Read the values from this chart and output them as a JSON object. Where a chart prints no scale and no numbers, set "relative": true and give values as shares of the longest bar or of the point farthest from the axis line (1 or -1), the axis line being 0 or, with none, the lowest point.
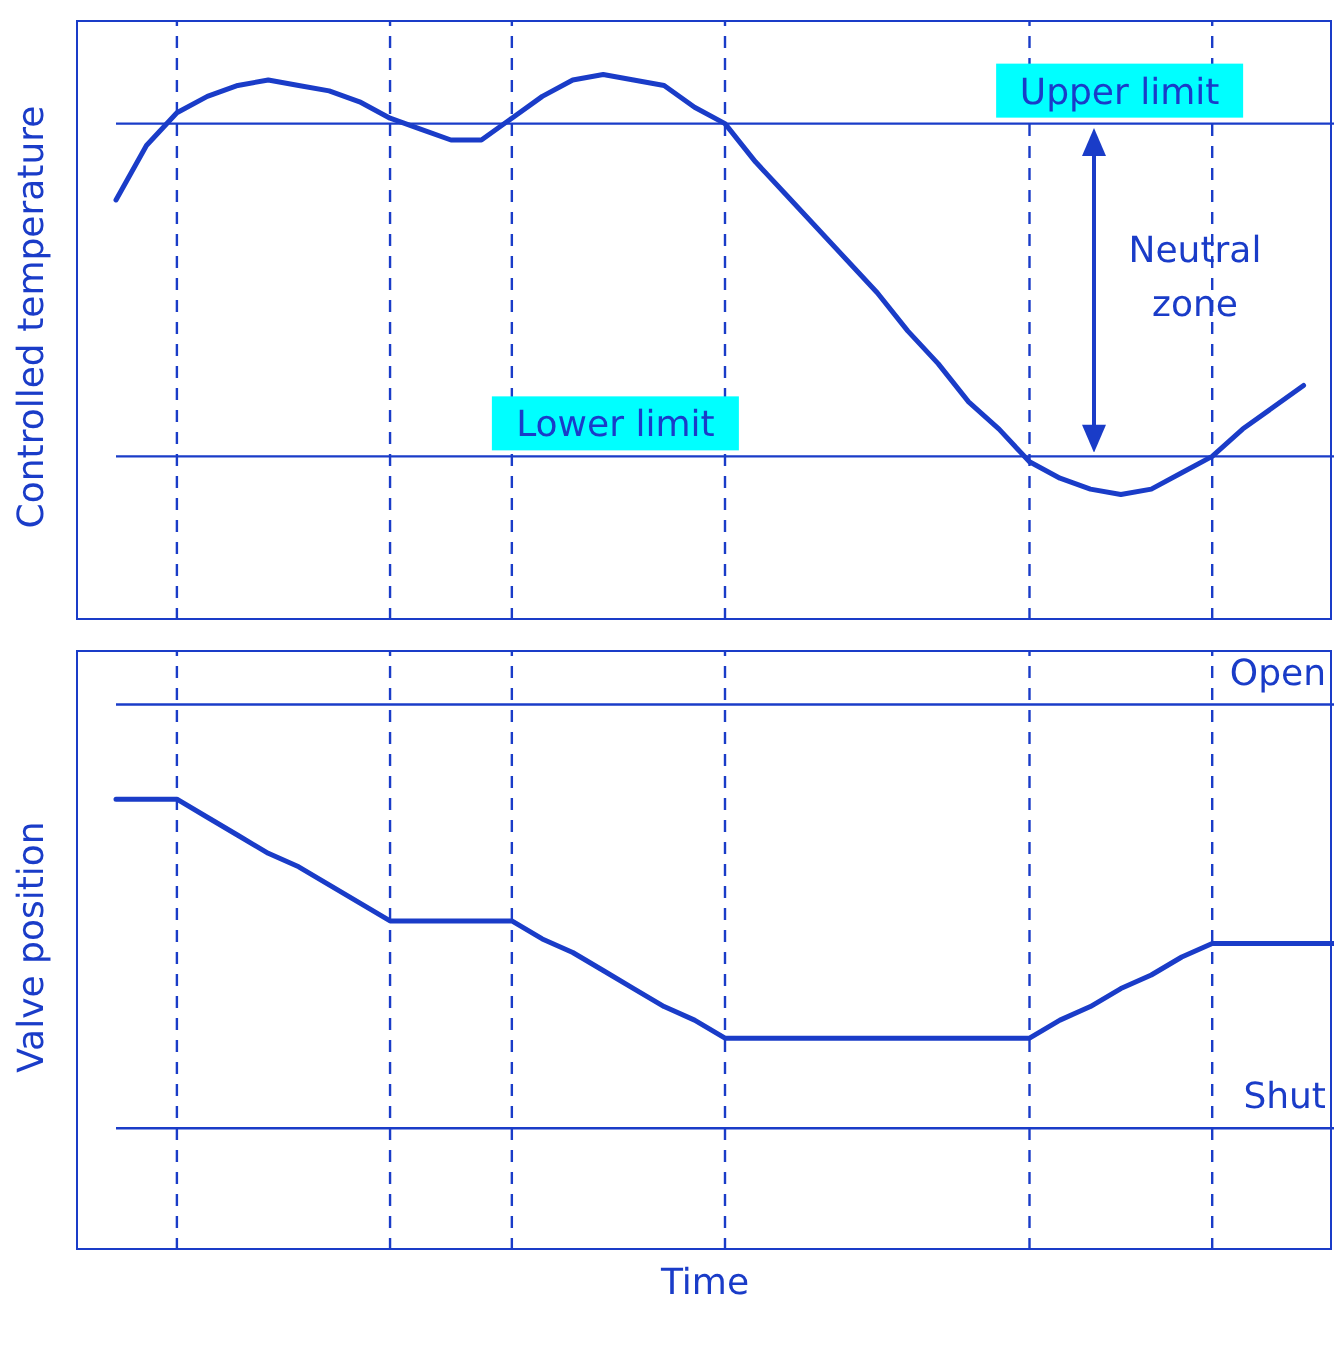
{
  "chart_data": [
    {
      "type": "line",
      "ylabel": "Controlled temperature",
      "relative": true,
      "marker": "none",
      "line_style": "solid",
      "categories": [
        null,
        null,
        null,
        null,
        null,
        null,
        null,
        null,
        null,
        null,
        null,
        null,
        null,
        null,
        null,
        null,
        null,
        null,
        null,
        null,
        null,
        null,
        null,
        null,
        null,
        null,
        null,
        null,
        null,
        null,
        null,
        null,
        null,
        null,
        null,
        null,
        null,
        null,
        null,
        null,
        null
      ],
      "series": [
        {
          "color": "#1a3cc8",
          "values": [
            0.77,
            0.87,
            0.93,
            0.96,
            0.98,
            0.99,
            0.98,
            0.97,
            0.95,
            0.92,
            0.9,
            0.88,
            0.88,
            0.92,
            0.96,
            0.99,
            1,
            0.99,
            0.98,
            0.94,
            0.91,
            0.84,
            0.78,
            0.72,
            0.66,
            0.6,
            0.53,
            0.47,
            0.4,
            0.35,
            0.29,
            0.26,
            0.24,
            0.23,
            0.24,
            0.27,
            0.3,
            0.35,
            0.39,
            0.43,
            null
          ]
        }
      ],
      "ref_lines": [
        {
          "axis": "y",
          "value": 0.91,
          "label": "Upper limit",
          "color": "#1a3cc8"
        },
        {
          "axis": "y",
          "value": 0.3,
          "label": "Lower limit",
          "color": "#1a3cc8"
        }
      ],
      "grid": "x",
      "annotations": [
        "Neutral zone"
      ]
    },
    {
      "type": "line",
      "ylabel": "Valve position",
      "xlabel": "Time",
      "relative": true,
      "marker": "none",
      "line_style": "solid",
      "grid": "x",
      "categories": [
        null,
        null,
        null,
        null,
        null,
        null,
        null,
        null,
        null,
        null,
        null,
        null,
        null,
        null,
        null,
        null,
        null,
        null,
        null,
        null,
        null,
        null,
        null,
        null,
        null,
        null,
        null,
        null,
        null,
        null,
        null,
        null,
        null,
        null,
        null,
        null,
        null,
        null,
        null,
        null,
        null
      ],
      "series": [
        {
          "color": "#1a3cc8",
          "values": [
            1,
            1,
            1,
            0.96,
            0.92,
            0.88,
            0.85,
            0.81,
            0.77,
            0.73,
            0.73,
            0.73,
            0.73,
            0.73,
            0.69,
            0.66,
            0.62,
            0.58,
            0.54,
            0.51,
            0.47,
            0.47,
            0.47,
            0.47,
            0.47,
            0.47,
            0.47,
            0.47,
            0.47,
            0.47,
            0.47,
            0.51,
            0.54,
            0.58,
            0.61,
            0.65,
            0.68,
            0.68,
            0.68,
            0.68,
            0.68
          ]
        }
      ],
      "ref_lines": [
        {
          "axis": "y",
          "value": 1.21,
          "label": "Open",
          "color": "#1a3cc8"
        },
        {
          "axis": "y",
          "value": 0.27,
          "label": "Shut",
          "color": "#1a3cc8"
        }
      ]
    }
  ]
}
